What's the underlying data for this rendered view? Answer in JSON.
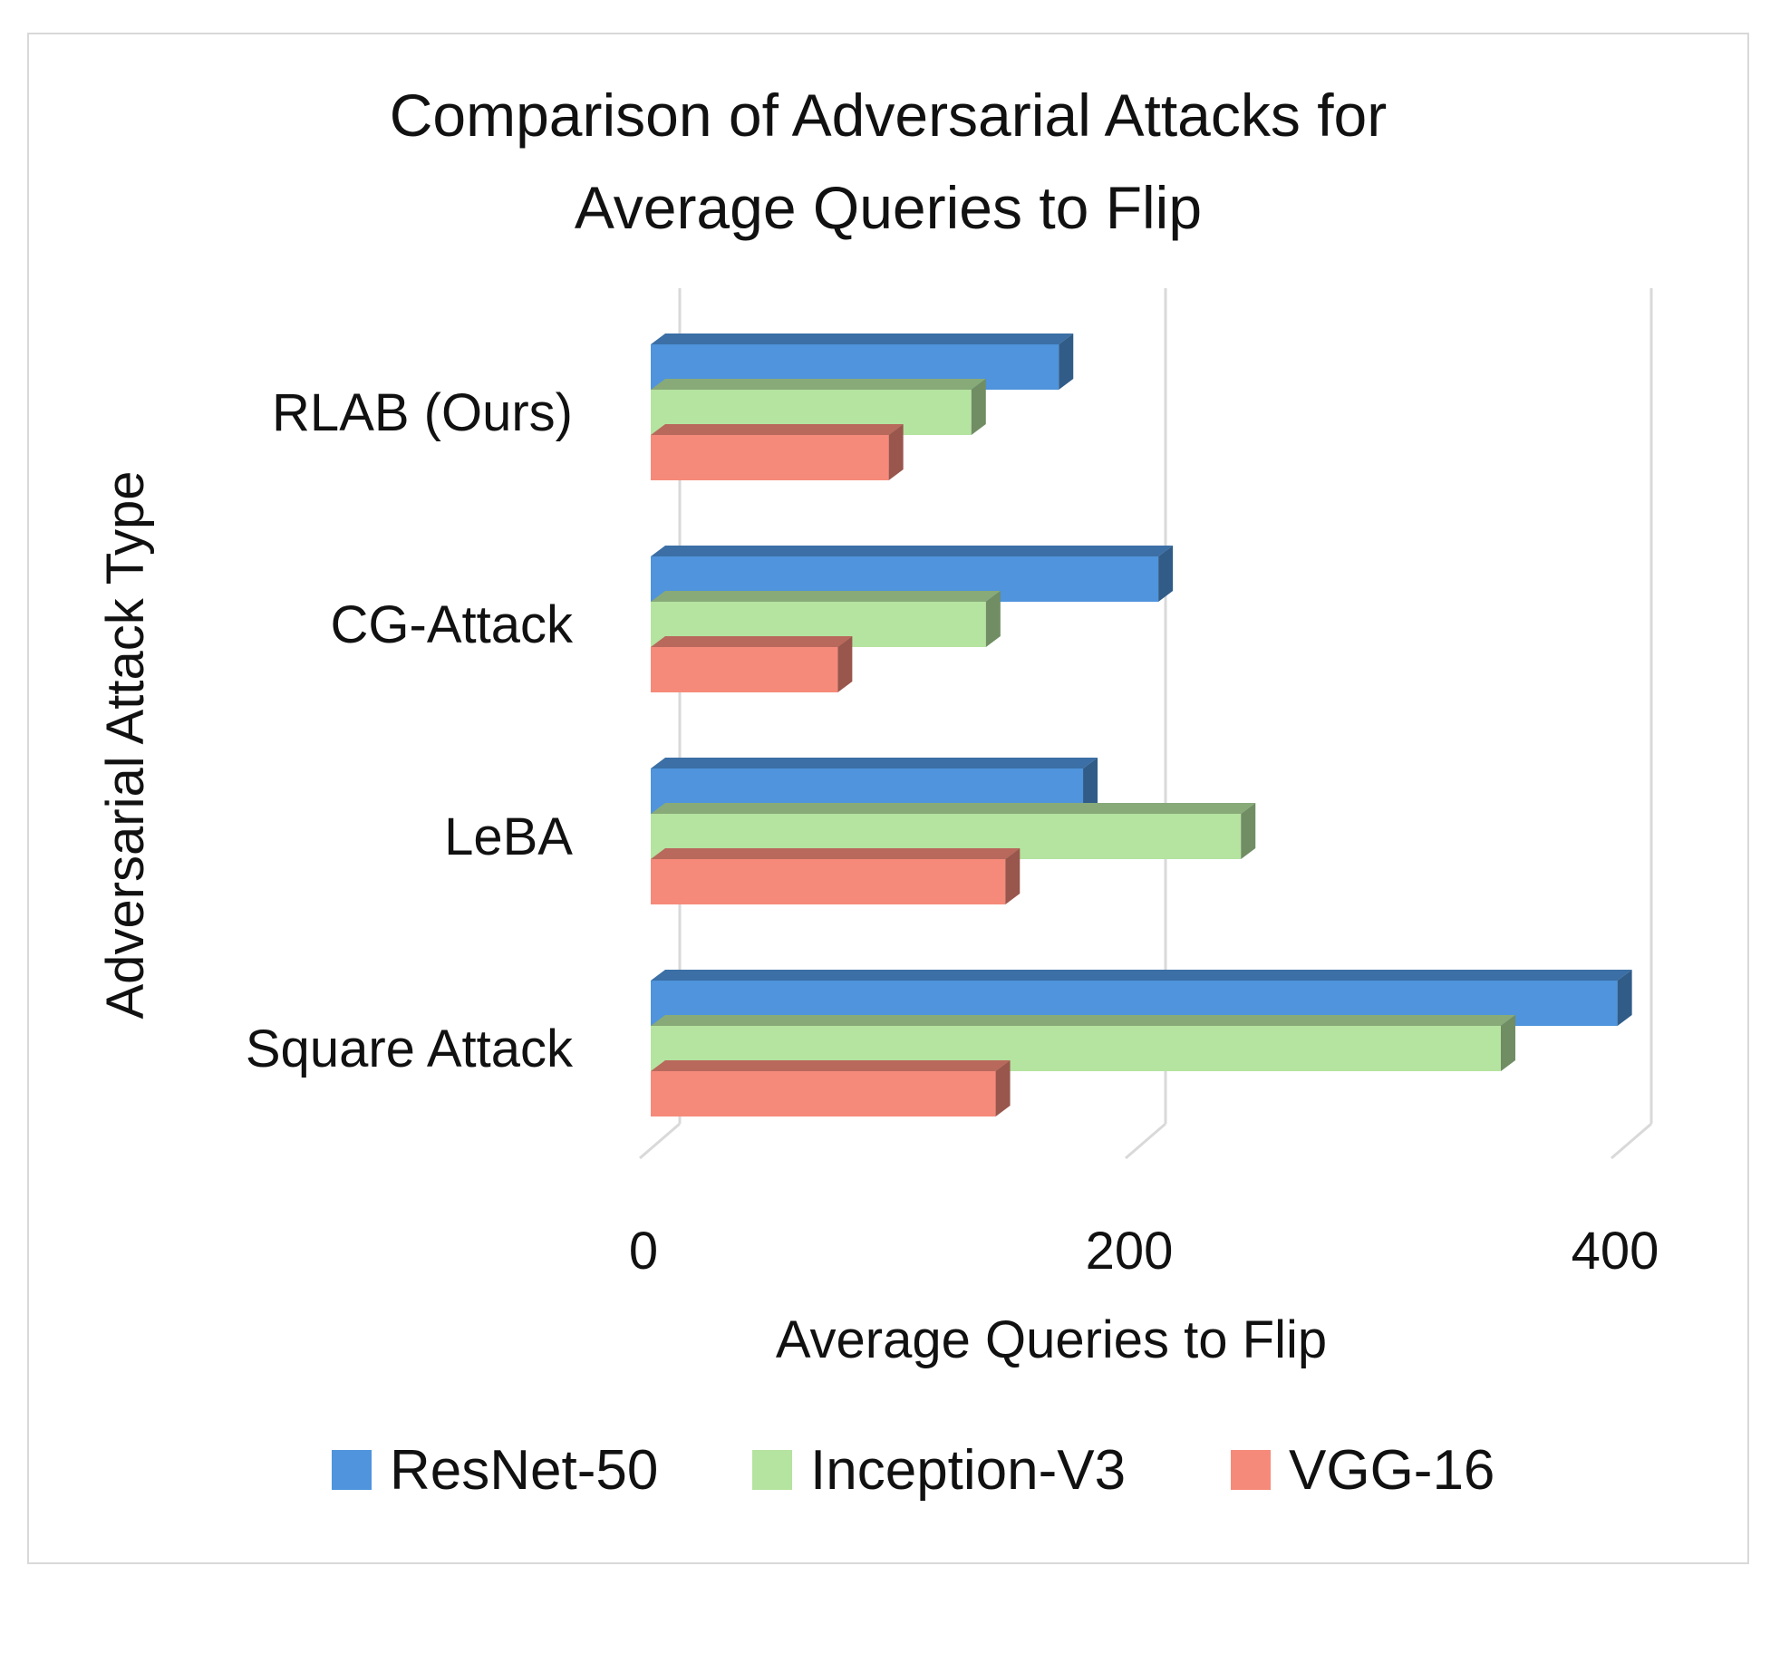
{
  "chart_data": {
    "type": "bar",
    "orientation": "horizontal",
    "title": [
      "Comparison of Adversarial Attacks for",
      "Average Queries to Flip"
    ],
    "xlabel": "Average Queries to Flip",
    "ylabel": "Adversarial Attack Type",
    "categories": [
      "RLAB (Ours)",
      "CG-Attack",
      "LeBA",
      "Square Attack"
    ],
    "series": [
      {
        "name": "ResNet-50",
        "color": "#4f94dc",
        "values": [
          168,
          209,
          178,
          398
        ]
      },
      {
        "name": "Inception-V3",
        "color": "#b5e3a0",
        "values": [
          132,
          138,
          243,
          350
        ]
      },
      {
        "name": "VGG-16",
        "color": "#f68a7a",
        "values": [
          98,
          77,
          146,
          142
        ]
      }
    ],
    "xlim": [
      0,
      400
    ],
    "xticks": [
      0,
      200,
      400
    ],
    "grid": true,
    "legend_position": "bottom"
  }
}
